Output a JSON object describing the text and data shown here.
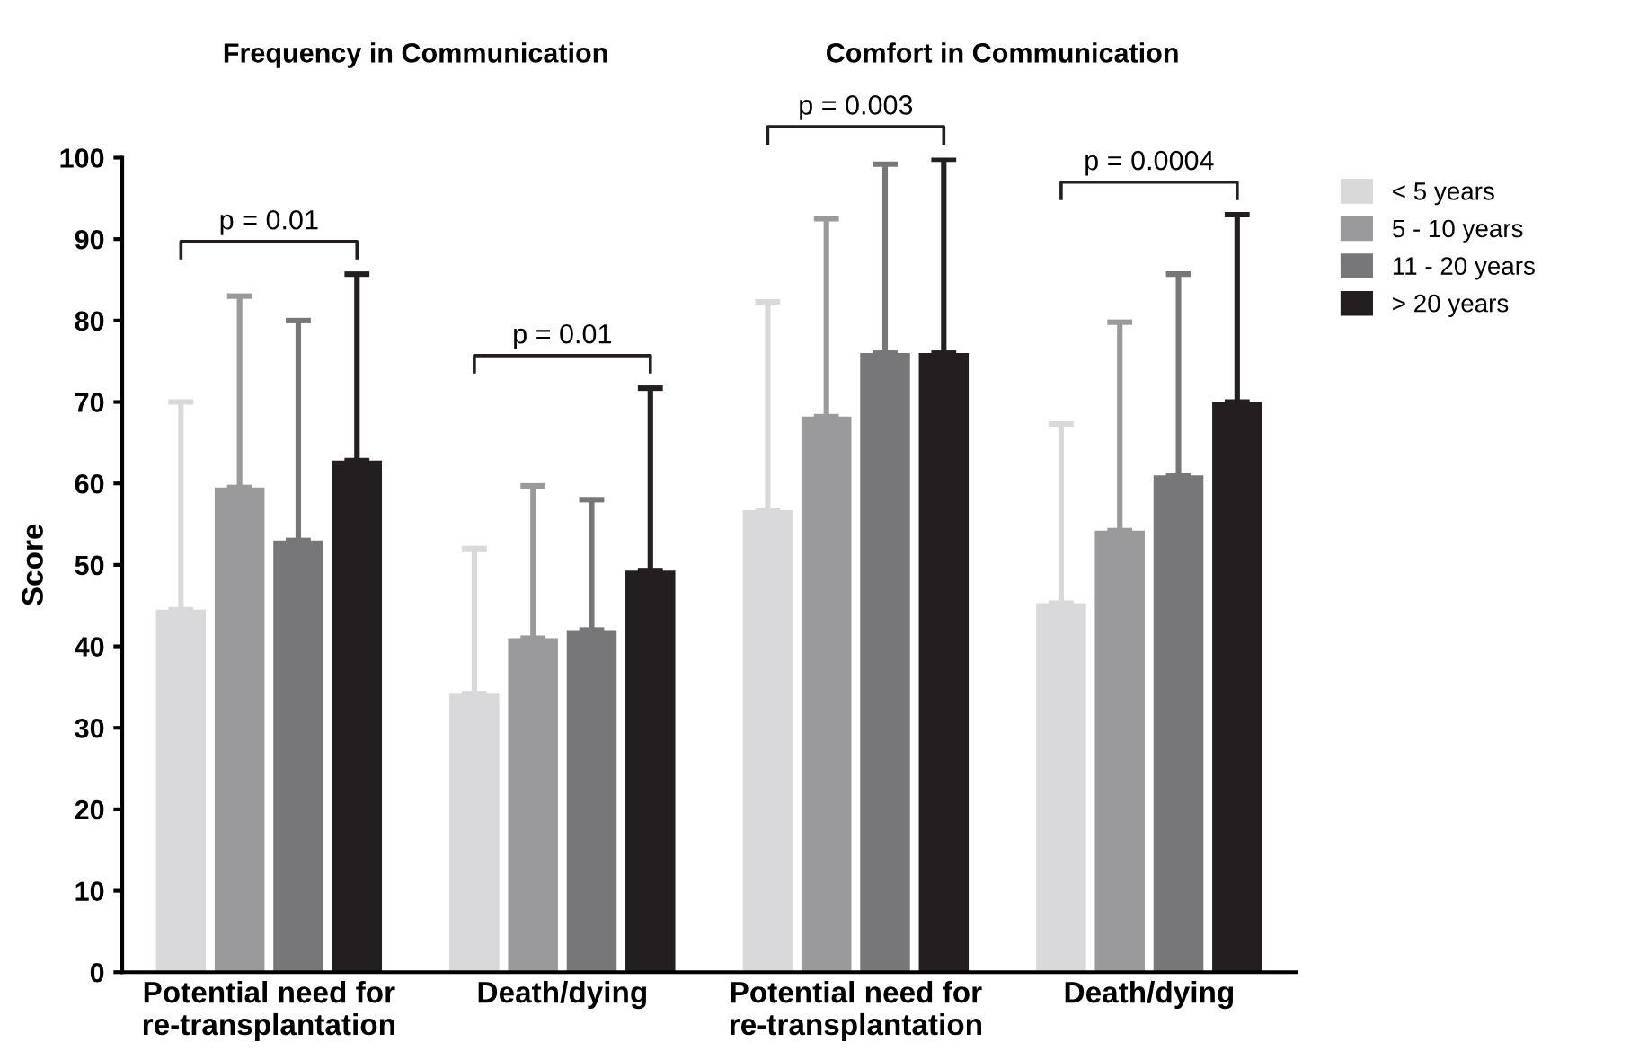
{
  "chart_data": {
    "type": "bar",
    "ylabel": "Score",
    "categories": [
      "Potential need for\nre-transplantation",
      "Death/dying",
      "Potential need for\nre-transplantation",
      "Death/dying"
    ],
    "series": [
      {
        "name": "< 5 years",
        "color": "#d9d9db",
        "values": [
          44.5,
          34.2,
          56.7,
          45.3
        ],
        "errors": [
          [
            44.5,
            70
          ],
          [
            34.2,
            52
          ],
          [
            56.7,
            82.3
          ],
          [
            45.3,
            67.3
          ]
        ]
      },
      {
        "name": "5 - 10 years",
        "color": "#9a9a9c",
        "values": [
          59.5,
          41,
          68.2,
          54.2
        ],
        "errors": [
          [
            59.5,
            83
          ],
          [
            41,
            59.7
          ],
          [
            68.2,
            92.5
          ],
          [
            54.2,
            79.8
          ]
        ]
      },
      {
        "name": "11 - 20 years",
        "color": "#77777a",
        "values": [
          53,
          42,
          76,
          61
        ],
        "errors": [
          [
            53,
            80
          ],
          [
            42,
            58
          ],
          [
            76,
            99.2
          ],
          [
            61,
            85.7
          ]
        ]
      },
      {
        "name": "> 20 years",
        "color": "#231f20",
        "values": [
          62.8,
          49.3,
          76,
          70
        ],
        "errors": [
          [
            62.8,
            85.7
          ],
          [
            49.3,
            71.7
          ],
          [
            76,
            99.8
          ],
          [
            70,
            93
          ]
        ]
      }
    ],
    "annotations": [
      "Frequency in Communication",
      "Comfort in Communication",
      "p = 0.01",
      "p = 0.01",
      "p = 0.003",
      "p = 0.0004"
    ],
    "ylim": [
      0,
      100
    ],
    "yticks": [
      0,
      10,
      20,
      30,
      40,
      50,
      60,
      70,
      80,
      90,
      100
    ],
    "grid": false,
    "legend": "top right"
  }
}
